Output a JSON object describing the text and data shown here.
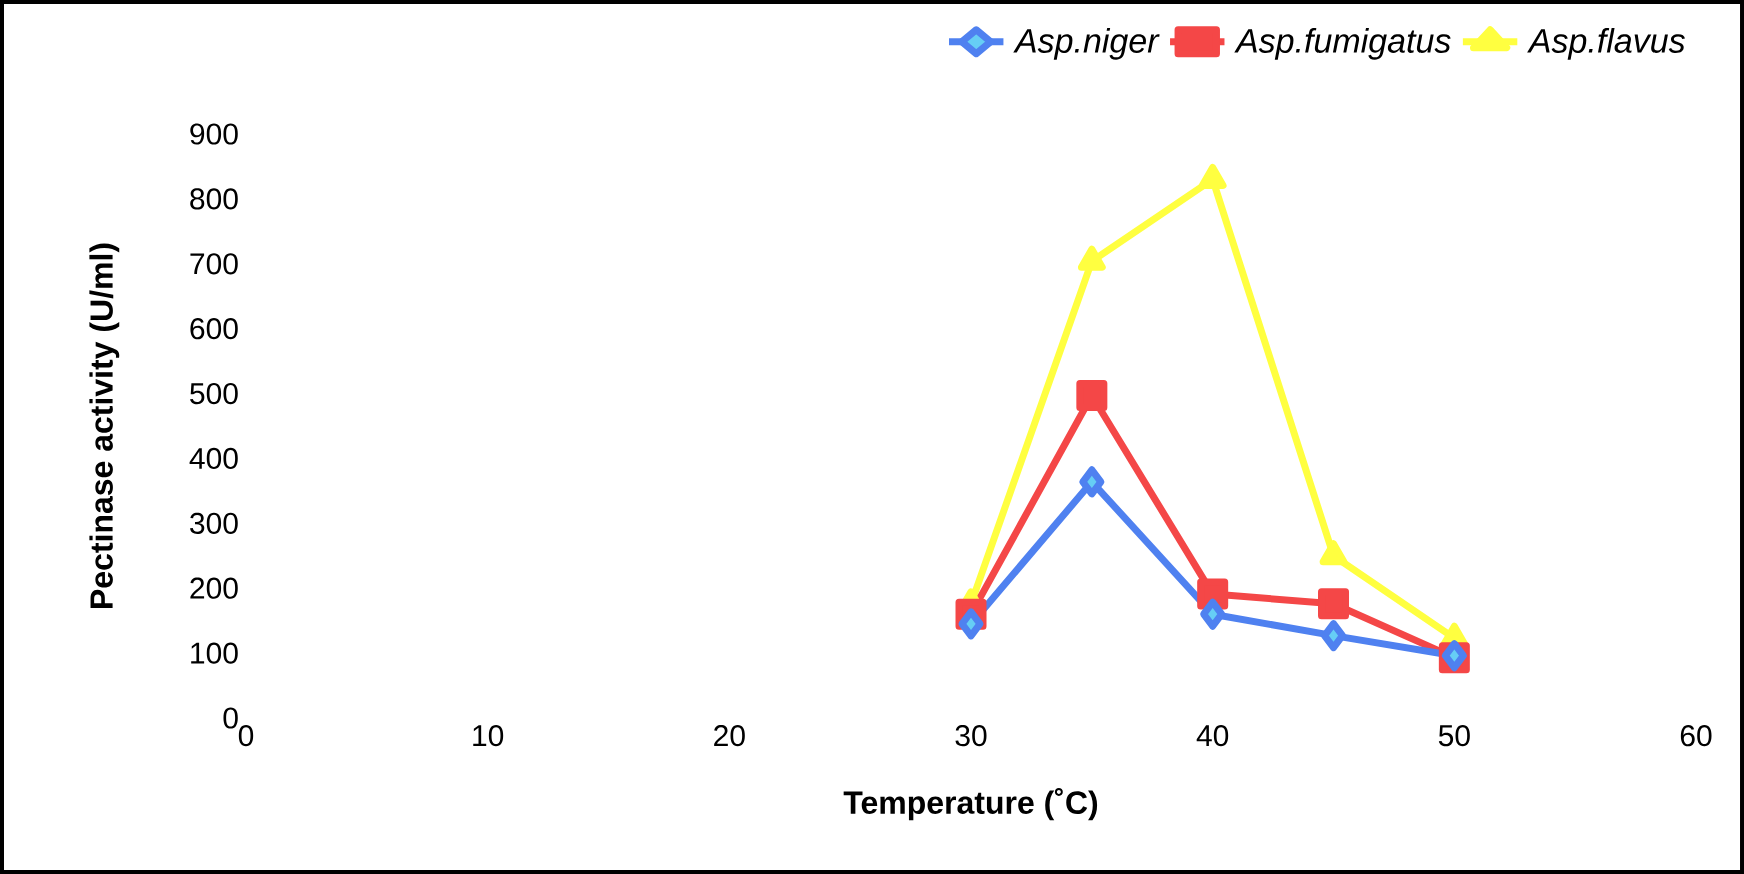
{
  "chart_data": {
    "type": "line",
    "xlabel": "Temperature (˚C)",
    "ylabel": "Pectinase activity (U/ml)",
    "xlim": [
      0,
      60
    ],
    "xticks": [
      0,
      10,
      20,
      30,
      40,
      50,
      60
    ],
    "ylim": [
      0,
      900
    ],
    "yticks": [
      0,
      100,
      200,
      300,
      400,
      500,
      600,
      700,
      800,
      900
    ],
    "grid": false,
    "legend": "top right",
    "line_style": "solid",
    "series": [
      {
        "name": "Asp.niger",
        "color": "#4f81f0",
        "marker": "diamond",
        "x": [
          30,
          35,
          40,
          45,
          50
        ],
        "values": [
          145,
          364,
          160,
          127,
          96
        ]
      },
      {
        "name": "Asp.fumigatus",
        "color": "#f44747",
        "marker": "square",
        "x": [
          30,
          35,
          40,
          45,
          50
        ],
        "values": [
          160,
          497,
          191,
          176,
          93
        ]
      },
      {
        "name": "Asp.flavus",
        "color": "#ffff40",
        "marker": "triangle",
        "x": [
          30,
          35,
          40,
          45,
          50
        ],
        "values": [
          176,
          704,
          830,
          250,
          123
        ]
      }
    ]
  }
}
